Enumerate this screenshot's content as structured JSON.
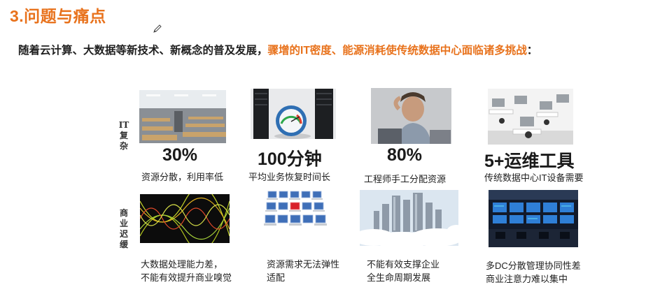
{
  "slide": {
    "heading": "3.问题与痛点",
    "intro_plain": "随着云计算、大数据等新技术、新概念的普及发展，",
    "intro_highlight": "骤增的IT密度、能源消耗使传统数据中心面临诸多挑战",
    "intro_end": "："
  },
  "colors": {
    "accent": "#e8721c",
    "text": "#1f1f1f"
  },
  "rows": [
    {
      "label": "IT复杂",
      "label_lines": [
        "IT",
        "复",
        "杂"
      ]
    },
    {
      "label": "商业迟缓",
      "label_lines": [
        "商",
        "业",
        "迟",
        "缓"
      ]
    }
  ],
  "it_items": [
    {
      "value": "30%",
      "caption": "资源分散，利用率低",
      "image": "lecture-hall-photo"
    },
    {
      "value": "100分钟",
      "caption": "平均业务恢复时间长",
      "image": "server-gauge-photo"
    },
    {
      "value": "80%",
      "caption": "工程师手工分配资源",
      "image": "stressed-engineer-photo"
    },
    {
      "value": "5+运维工具",
      "caption": "传统数据中心IT设备需要",
      "image": "office-workstations-photo"
    }
  ],
  "business_items": [
    {
      "caption_line1": "大数据处理能力差，",
      "caption_line2": "不能有效提升商业嗅觉",
      "image": "data-waveform-photo"
    },
    {
      "caption_line1": "资源需求无法弹性",
      "caption_line2": "适配",
      "image": "laptop-grid-photo"
    },
    {
      "caption_line1": "不能有效支撑企业",
      "caption_line2": "全生命周期发展",
      "image": "city-clouds-photo"
    },
    {
      "caption_line1": "多DC分散管理协同性差",
      "caption_line2": "商业注意力难以集中",
      "image": "control-room-photo"
    }
  ]
}
